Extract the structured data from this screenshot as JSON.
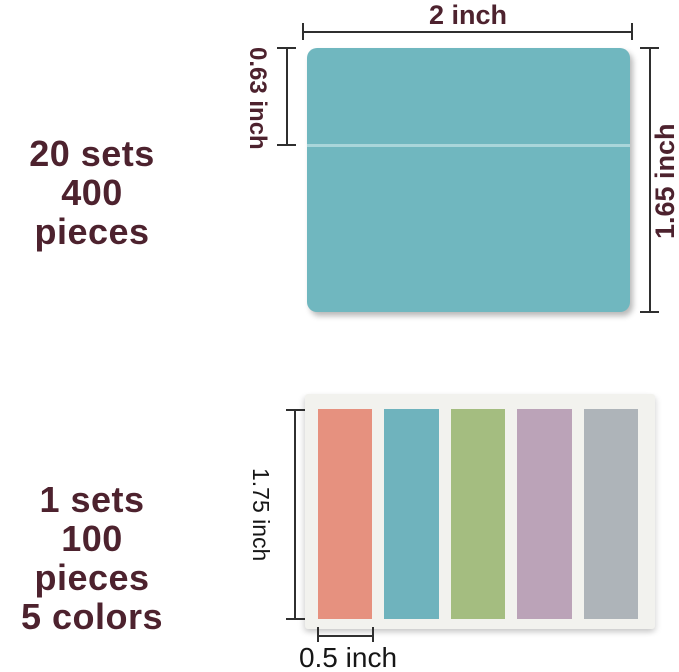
{
  "colors": {
    "label_maroon": "#4d222e",
    "dim_line": "#2f2f2f",
    "note_teal": "#70b7bf",
    "note_fold": "#a9d6da",
    "card_bg": "#f2f2ee"
  },
  "top_diagram": {
    "quantity_line1": "20 sets",
    "quantity_line2": "400 pieces",
    "width_label": "2 inch",
    "flap_label": "0.63 inch",
    "height_label": "1.65 inch"
  },
  "bottom_diagram": {
    "quantity_line1": "1 sets",
    "quantity_line2": "100 pieces",
    "quantity_line3": "5 colors",
    "height_label": "1.75 inch",
    "width_label": "0.5 inch",
    "tabs": [
      {
        "name": "coral",
        "hex": "#e6917f"
      },
      {
        "name": "teal",
        "hex": "#6fb3bd"
      },
      {
        "name": "green",
        "hex": "#a4bd80"
      },
      {
        "name": "mauve",
        "hex": "#bba3b8"
      },
      {
        "name": "gray",
        "hex": "#aeb4b9"
      }
    ]
  }
}
